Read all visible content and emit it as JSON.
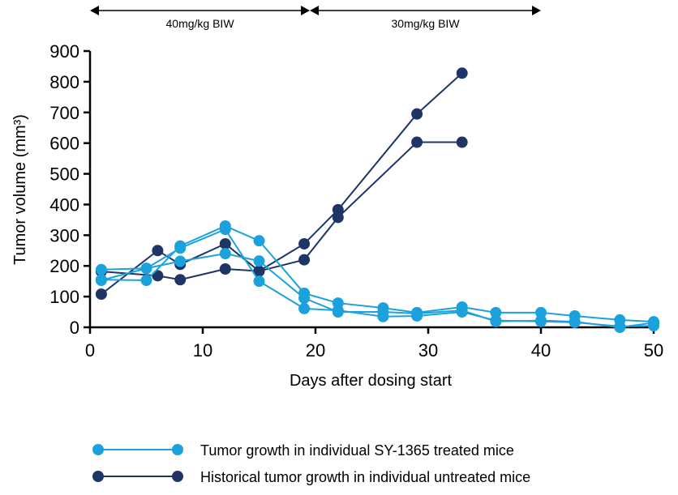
{
  "chart_data": {
    "type": "line",
    "title": "",
    "xlabel": "Days after dosing start",
    "ylabel": "Tumor volume (mm³)",
    "xlim": [
      0,
      50
    ],
    "ylim": [
      0,
      900
    ],
    "xticks": [
      0,
      10,
      20,
      30,
      40,
      50
    ],
    "yticks": [
      0,
      100,
      200,
      300,
      400,
      500,
      600,
      700,
      800,
      900
    ],
    "grid": false,
    "legend_position": "bottom",
    "dosing_periods": [
      {
        "label": "40mg/kg BIW",
        "start": 0,
        "end": 19.5
      },
      {
        "label": "30mg/kg BIW",
        "start": 19.5,
        "end": 40
      }
    ],
    "groups": [
      {
        "name": "Tumor growth in individual SY-1365 treated mice",
        "color": "#1ba1dc",
        "x": [
          1,
          5,
          8,
          12,
          15,
          19,
          22,
          26,
          29,
          33,
          36,
          40,
          43,
          47,
          50
        ],
        "series": [
          [
            155,
            153,
            265,
            330,
            282,
            111,
            79,
            63,
            48,
            66,
            48,
            48,
            37,
            24,
            18
          ],
          [
            188,
            192,
            258,
            319,
            150,
            61,
            55,
            35,
            37,
            50,
            22,
            19,
            16,
            3,
            5
          ],
          [
            153,
            192,
            215,
            240,
            216,
            95,
            50,
            50,
            45,
            55,
            19,
            22,
            18,
            0,
            15
          ]
        ]
      },
      {
        "name": "Historical tumor growth in individual untreated mice",
        "color": "#1f3566",
        "x": [
          1,
          6,
          8,
          12,
          15,
          19,
          22,
          29,
          33
        ],
        "series": [
          [
            108,
            250,
            205,
            272,
            183,
            272,
            383,
            695,
            828
          ],
          [
            182,
            168,
            155,
            190,
            183,
            220,
            358,
            603,
            603
          ]
        ]
      }
    ]
  }
}
